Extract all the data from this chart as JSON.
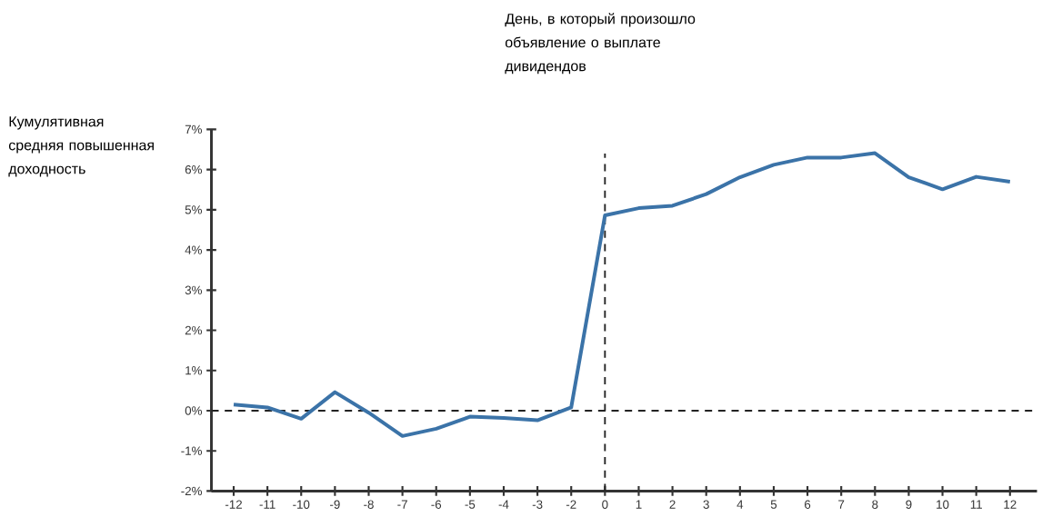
{
  "chart_data": {
    "type": "line",
    "ylabel": "Кумулятивная средняя повышенная доходность",
    "categories": [
      "-12",
      "-11",
      "-10",
      "-9",
      "-8",
      "-7",
      "-6",
      "-5",
      "-4",
      "-3",
      "-2",
      "0",
      "1",
      "2",
      "3",
      "4",
      "5",
      "6",
      "7",
      "8",
      "9",
      "10",
      "11",
      "12"
    ],
    "series": [
      {
        "color": "#3b73a8",
        "values": [
          0.15,
          0.08,
          -0.2,
          0.46,
          -0.05,
          -0.63,
          -0.45,
          -0.15,
          -0.18,
          -0.24,
          0.08,
          4.86,
          5.04,
          5.1,
          5.39,
          5.81,
          6.12,
          6.3,
          6.3,
          6.41,
          5.81,
          5.51,
          5.82,
          5.7
        ]
      }
    ],
    "ylim": [
      -2,
      7
    ],
    "yticks": [
      {
        "value": -2,
        "label": "-2%"
      },
      {
        "value": -1,
        "label": "-1%"
      },
      {
        "value": 0,
        "label": "0%"
      },
      {
        "value": 1,
        "label": "1%"
      },
      {
        "value": 2,
        "label": "2%"
      },
      {
        "value": 3,
        "label": "3%"
      },
      {
        "value": 4,
        "label": "4%"
      },
      {
        "value": 5,
        "label": "5%"
      },
      {
        "value": 6,
        "label": "6%"
      },
      {
        "value": 7,
        "label": "7%"
      }
    ],
    "ref_lines": [
      {
        "axis": "y",
        "value": 0,
        "line_style": "dashed"
      },
      {
        "axis": "x",
        "value": "0",
        "line_style": "dashed",
        "label": "День, в который произошло объявление о выплате дивидендов"
      }
    ],
    "grid": false,
    "marker": "none",
    "line_style": "solid"
  }
}
